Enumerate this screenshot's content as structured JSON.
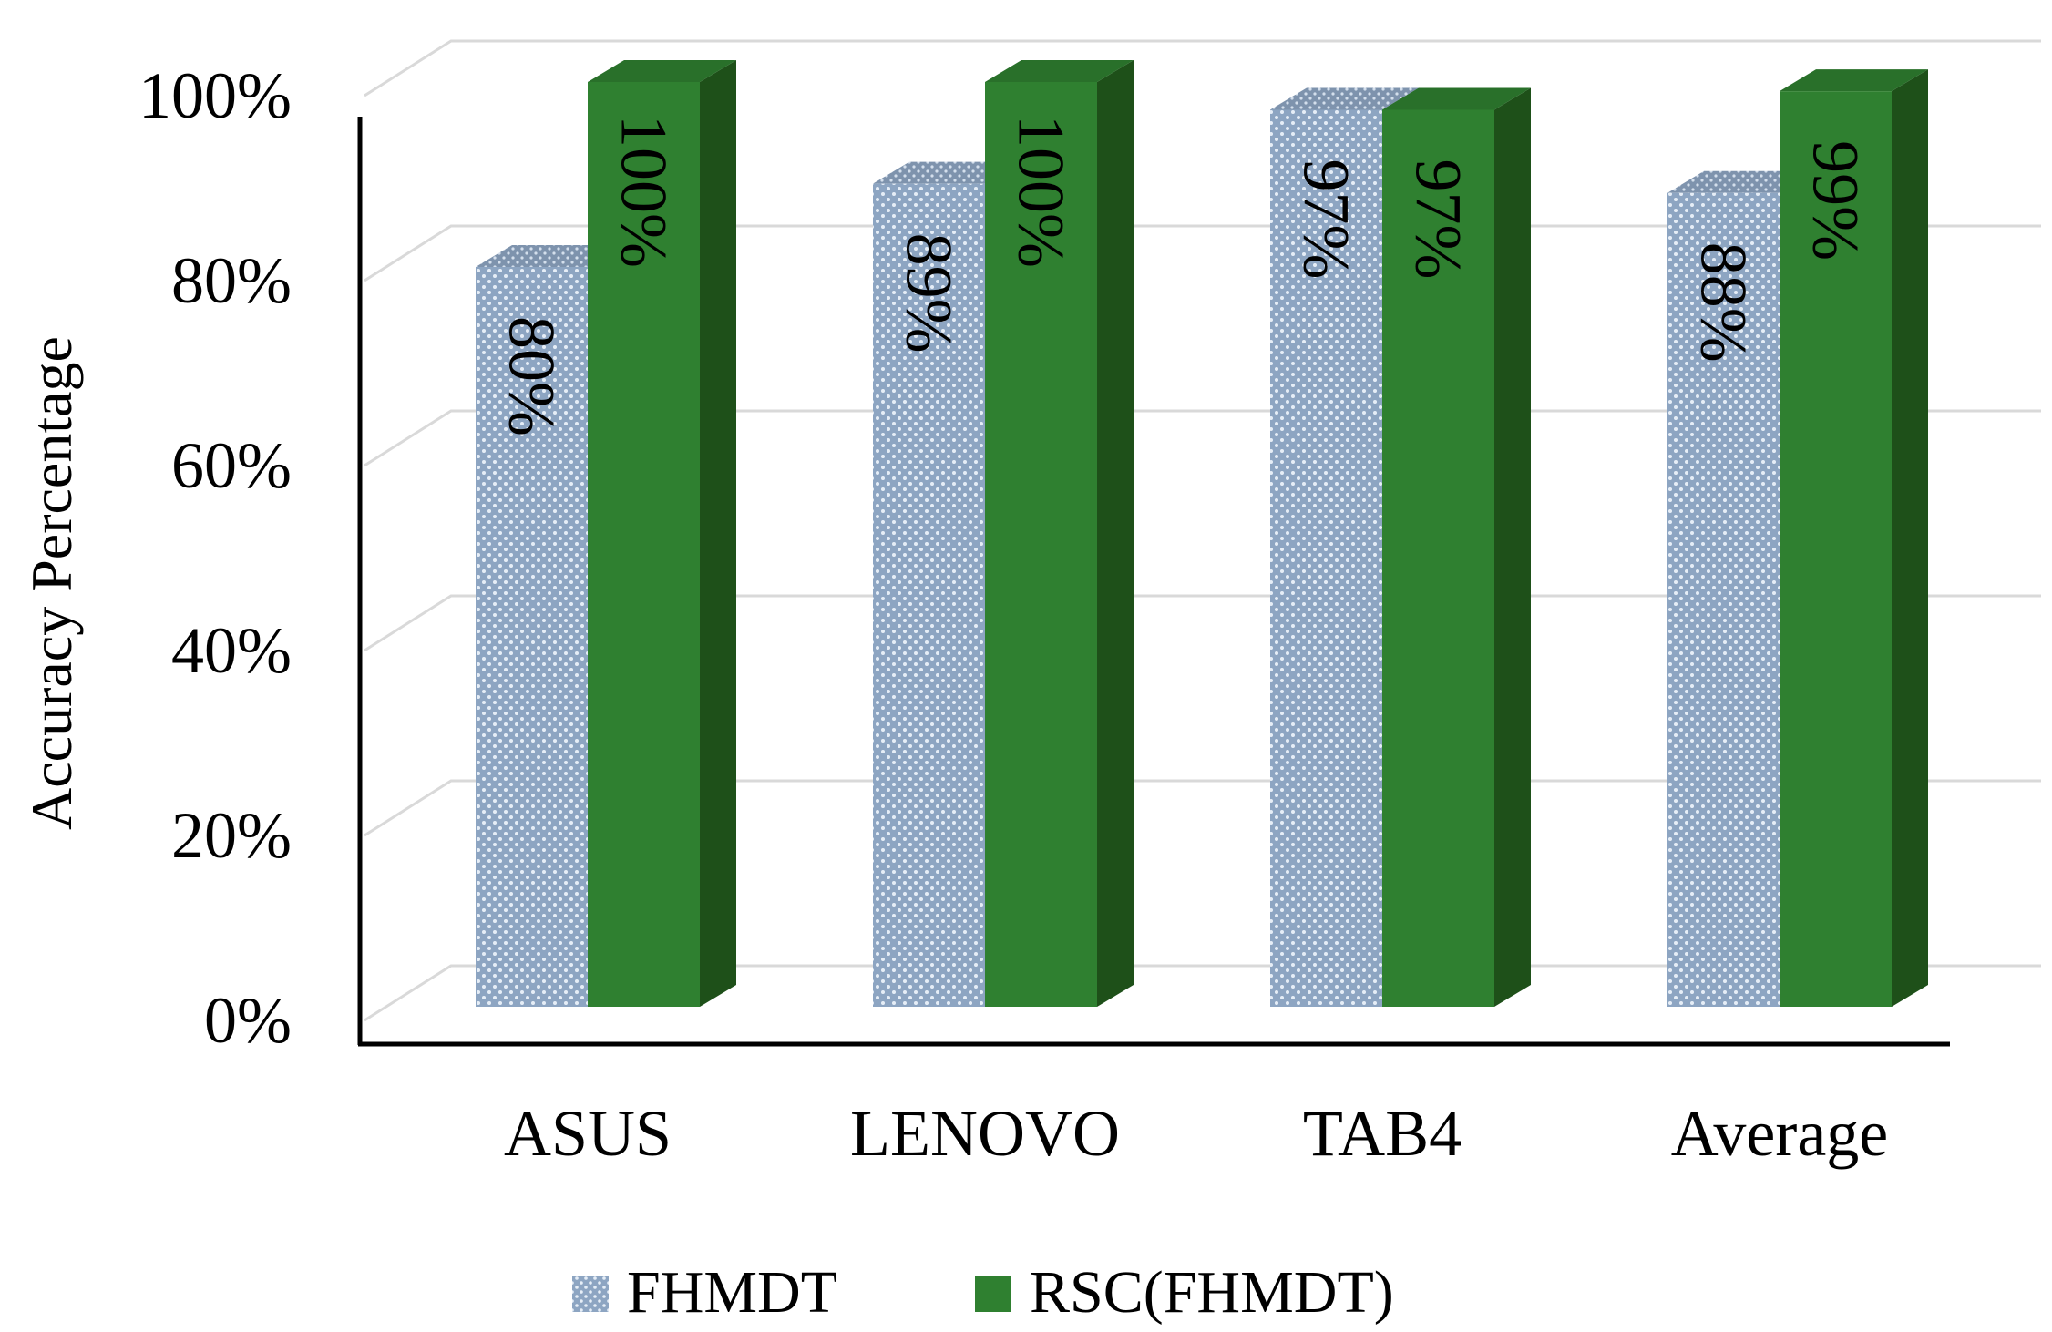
{
  "chart_data": {
    "type": "bar",
    "style": "3d-clustered-column",
    "title": "",
    "xlabel": "",
    "ylabel": "Accuracy Percentage",
    "ylim": [
      0,
      100
    ],
    "yticks": [
      "0%",
      "20%",
      "40%",
      "60%",
      "80%",
      "100%"
    ],
    "grid": true,
    "categories": [
      "ASUS",
      "LENOVO",
      "TAB4",
      "Average"
    ],
    "series": [
      {
        "name": "FHMDT",
        "values": [
          80,
          89,
          97,
          88
        ],
        "labels": [
          "80%",
          "89%",
          "97%",
          "88%"
        ],
        "color": "#8da5c2",
        "pattern": "dotted"
      },
      {
        "name": "RSC(FHMDT)",
        "values": [
          100,
          100,
          97,
          99
        ],
        "labels": [
          "100%",
          "100%",
          "97%",
          "99%"
        ],
        "color": "#2f8030",
        "side_color": "#1e5019"
      }
    ],
    "legend": "bottom-center"
  }
}
